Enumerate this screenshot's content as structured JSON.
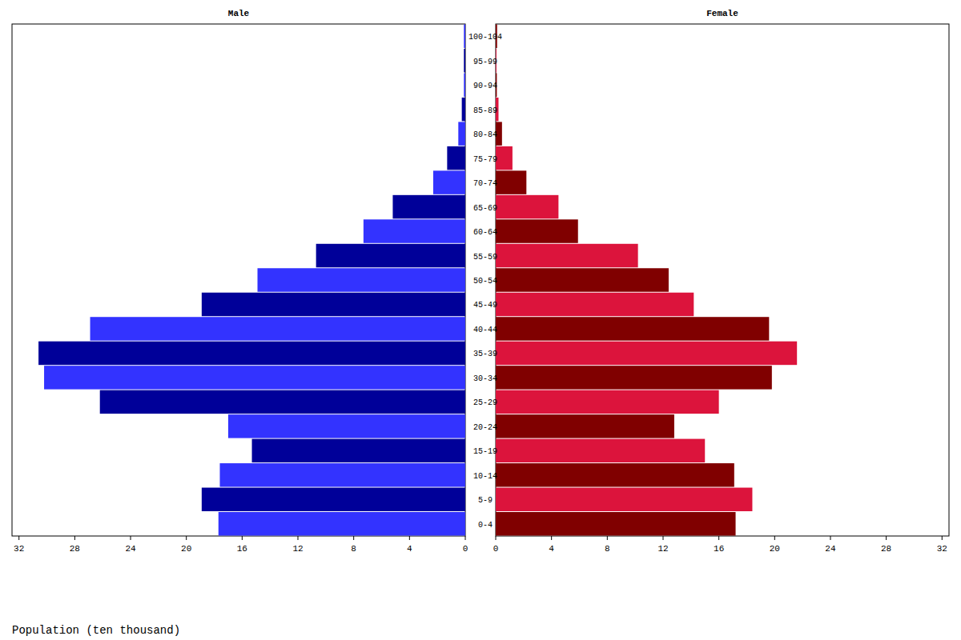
{
  "chart_data": {
    "type": "bar",
    "orientation": "horizontal",
    "x_label": "Population (ten thousand)",
    "categories": [
      "0-4",
      "5-9",
      "10-14",
      "15-19",
      "20-24",
      "25-29",
      "30-34",
      "35-39",
      "40-44",
      "45-49",
      "50-54",
      "55-59",
      "60-64",
      "65-69",
      "70-74",
      "75-79",
      "80-84",
      "85-89",
      "90-94",
      "95-99",
      "100-104"
    ],
    "series": [
      {
        "name": "Male",
        "values": [
          17.7,
          18.9,
          17.6,
          15.3,
          17.0,
          26.2,
          30.2,
          30.6,
          26.9,
          18.9,
          14.9,
          10.7,
          7.3,
          5.2,
          2.3,
          1.3,
          0.5,
          0.25,
          0.1,
          0.1,
          0.1
        ],
        "colors": [
          "#3333ff",
          "#000099",
          "#3333ff",
          "#000099",
          "#3333ff",
          "#000099",
          "#3333ff",
          "#000099",
          "#3333ff",
          "#000099",
          "#3333ff",
          "#000099",
          "#3333ff",
          "#000099",
          "#3333ff",
          "#000099",
          "#3333ff",
          "#000099",
          "#3333ff",
          "#000099",
          "#3333ff"
        ]
      },
      {
        "name": "Female",
        "values": [
          17.2,
          18.4,
          17.1,
          15.0,
          12.8,
          16.0,
          19.8,
          21.6,
          19.6,
          14.2,
          12.4,
          10.2,
          5.9,
          4.5,
          2.2,
          1.2,
          0.45,
          0.2,
          0.08,
          0.05,
          0.1
        ],
        "colors": [
          "#800000",
          "#dc143c",
          "#800000",
          "#dc143c",
          "#800000",
          "#dc143c",
          "#800000",
          "#dc143c",
          "#800000",
          "#dc143c",
          "#800000",
          "#dc143c",
          "#800000",
          "#dc143c",
          "#800000",
          "#dc143c",
          "#800000",
          "#dc143c",
          "#800000",
          "#dc143c",
          "#800000"
        ]
      }
    ],
    "xlim": [
      0,
      32.5
    ],
    "xticks": [
      0,
      4,
      8,
      12,
      16,
      20,
      24,
      28,
      32
    ]
  }
}
